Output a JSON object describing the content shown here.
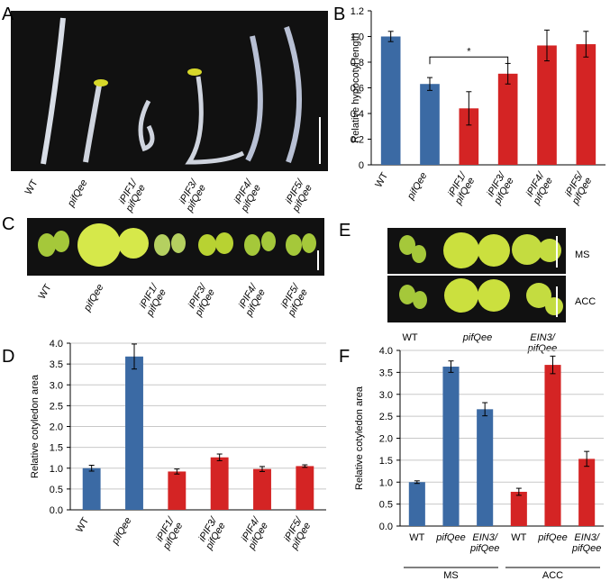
{
  "panels": [
    "A",
    "B",
    "C",
    "D",
    "E",
    "F"
  ],
  "photo_a": {
    "labels": [
      [
        "WT"
      ],
      [
        "pifQee"
      ],
      [
        "iPIF1/",
        "pifQee"
      ],
      [
        "iPIF3/",
        "pifQee"
      ],
      [
        "iPIF4/",
        "pifQee"
      ],
      [
        "iPIF5/",
        "pifQee"
      ]
    ]
  },
  "photo_c": {
    "labels": [
      [
        "WT"
      ],
      [
        "pifQee"
      ],
      [
        "iPIF1/",
        "pifQee"
      ],
      [
        "iPIF3/",
        "pifQee"
      ],
      [
        "iPIF4/",
        "pifQee"
      ],
      [
        "iPIF5/",
        "pifQee"
      ]
    ]
  },
  "photo_e": {
    "labels": [
      [
        "WT"
      ],
      [
        "pifQee"
      ],
      [
        "EIN3/",
        "pifQee"
      ]
    ],
    "rows": [
      "MS",
      "ACC"
    ]
  },
  "chart_data": [
    {
      "type": "bar",
      "ylabel": "Relative hypocotyl length",
      "categories": [
        [
          "WT"
        ],
        [
          "pifQee"
        ],
        [
          "iPIF1/",
          "pifQee"
        ],
        [
          "iPIF3/",
          "pifQee"
        ],
        [
          "iPIF4/",
          "pifQee"
        ],
        [
          "iPIF5/",
          "pifQee"
        ]
      ],
      "values": [
        1.0,
        0.63,
        0.44,
        0.71,
        0.93,
        0.94
      ],
      "errors": [
        0.04,
        0.05,
        0.13,
        0.08,
        0.12,
        0.1
      ],
      "colors": [
        "#3b6aa4",
        "#3b6aa4",
        "#d42424",
        "#d42424",
        "#d42424",
        "#d42424"
      ],
      "ylim": [
        0,
        1.2
      ],
      "yticks": [
        0,
        0.2,
        0.4,
        0.6,
        0.8,
        {
          "value": 1,
          "label": "1.0"
        },
        1.2
      ],
      "grid": false,
      "annotation": "*"
    },
    {
      "type": "bar",
      "ylabel": "Relative cotyledon area",
      "categories": [
        [
          "WT"
        ],
        [
          "pifQee"
        ],
        [
          "iPIF1/",
          "pifQee"
        ],
        [
          "iPIF3/",
          "pifQee"
        ],
        [
          "iPIF4/",
          "pifQee"
        ],
        [
          "iPIF5/",
          "pifQee"
        ]
      ],
      "values": [
        1.0,
        3.68,
        0.92,
        1.26,
        0.98,
        1.05
      ],
      "errors": [
        0.07,
        0.3,
        0.06,
        0.08,
        0.06,
        0.03
      ],
      "colors": [
        "#3b6aa4",
        "#3b6aa4",
        "#d42424",
        "#d42424",
        "#d42424",
        "#d42424"
      ],
      "ylim": [
        0,
        4
      ],
      "yticks": [
        {
          "value": 0,
          "label": "0.0"
        },
        0.5,
        {
          "value": 1,
          "label": "1.0"
        },
        1.5,
        {
          "value": 2,
          "label": "2.0"
        },
        2.5,
        {
          "value": 3,
          "label": "3.0"
        },
        3.5,
        {
          "value": 4,
          "label": "4.0"
        }
      ],
      "grid": true
    },
    {
      "type": "bar",
      "ylabel": "Relative cotyledon area",
      "categories": [
        [
          "WT"
        ],
        [
          "pifQee"
        ],
        [
          "EIN3/",
          "pifQee"
        ],
        [
          "WT"
        ],
        [
          "pifQee"
        ],
        [
          "EIN3/",
          "pifQee"
        ]
      ],
      "groups": [
        "MS",
        "ACC"
      ],
      "values": [
        1.0,
        3.63,
        2.66,
        0.78,
        3.67,
        1.53
      ],
      "errors": [
        0.03,
        0.13,
        0.15,
        0.08,
        0.2,
        0.17
      ],
      "colors": [
        "#3b6aa4",
        "#3b6aa4",
        "#3b6aa4",
        "#d42424",
        "#d42424",
        "#d42424"
      ],
      "ylim": [
        0,
        4
      ],
      "yticks": [
        {
          "value": 0,
          "label": "0.0"
        },
        0.5,
        {
          "value": 1,
          "label": "1.0"
        },
        1.5,
        {
          "value": 2,
          "label": "2.0"
        },
        2.5,
        {
          "value": 3,
          "label": "3.0"
        },
        3.5,
        {
          "value": 4,
          "label": "4.0"
        }
      ],
      "grid": true
    }
  ]
}
